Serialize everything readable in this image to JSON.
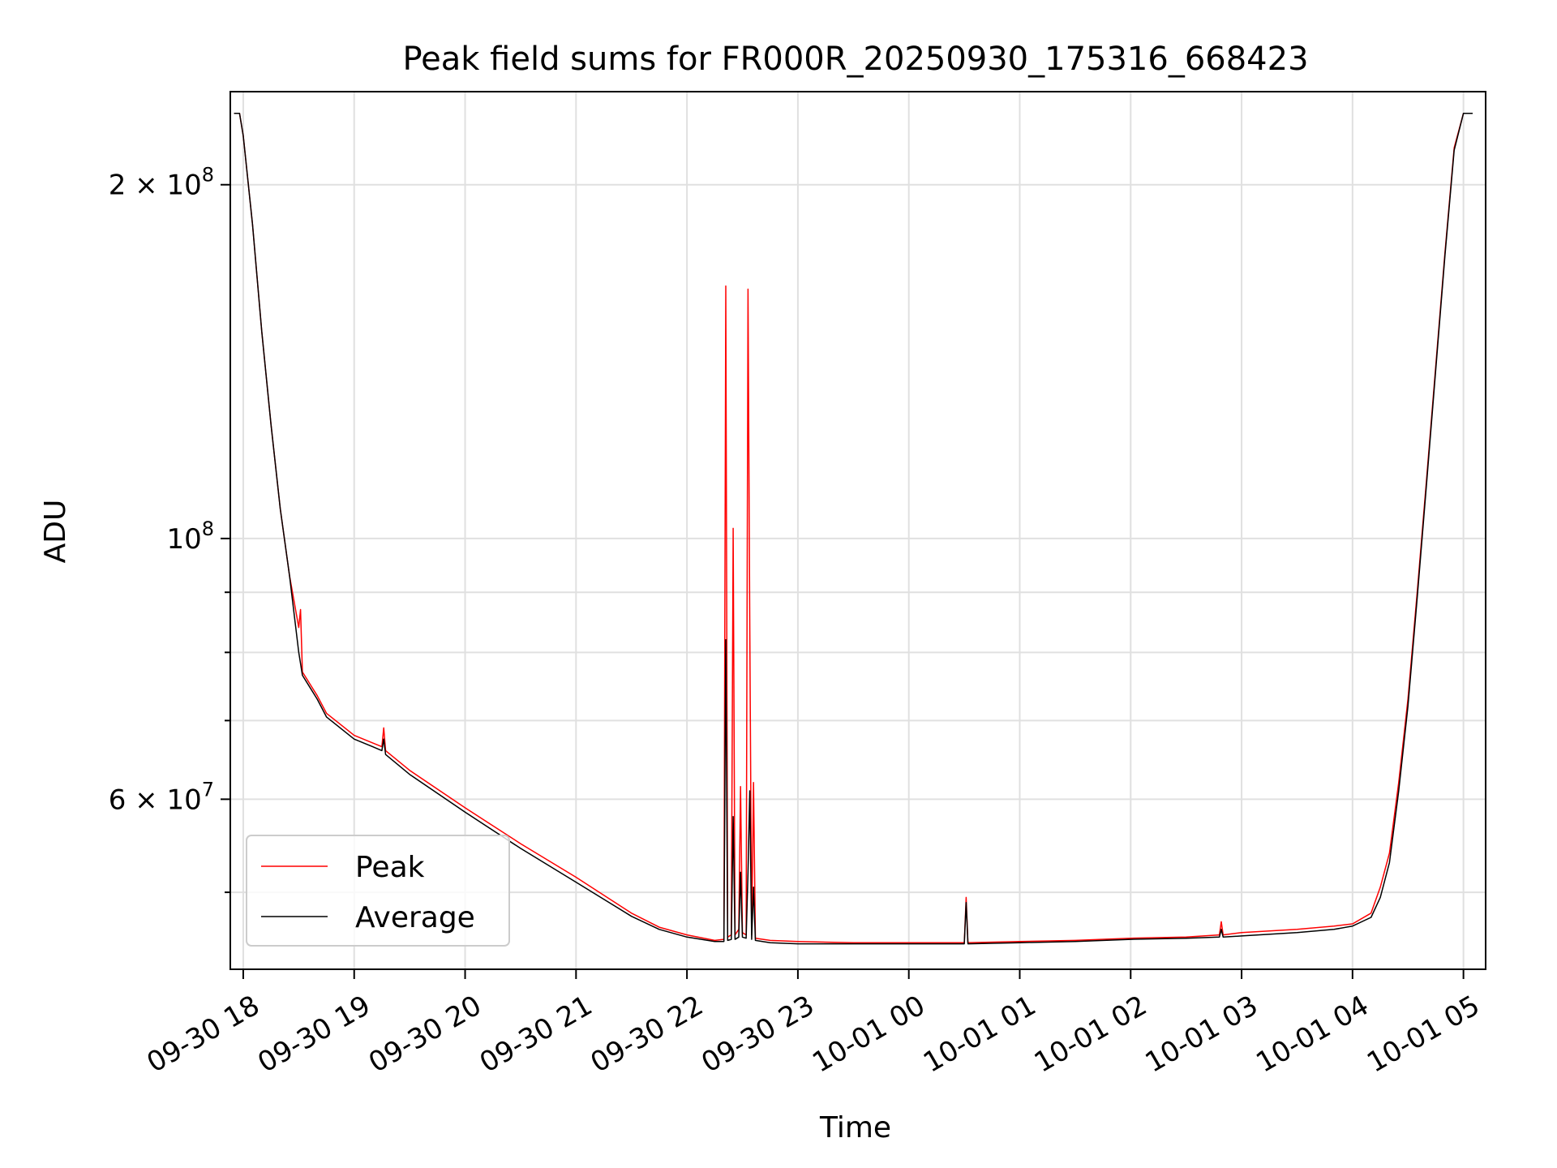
{
  "chart_data": {
    "type": "line",
    "title": "Peak field sums for FR000R_20250930_175316_668423",
    "xlabel": "Time",
    "ylabel": "ADU",
    "y_scale": "log",
    "grid": true,
    "legend_position": "lower-left",
    "xlim": [
      "2025-09-30 17:53",
      "2025-10-01 05:12"
    ],
    "ylim": [
      43000000,
      240000000
    ],
    "x_ticks": [
      {
        "label": "09-30 18",
        "time": "2025-09-30 18:00"
      },
      {
        "label": "09-30 19",
        "time": "2025-09-30 19:00"
      },
      {
        "label": "09-30 20",
        "time": "2025-09-30 20:00"
      },
      {
        "label": "09-30 21",
        "time": "2025-09-30 21:00"
      },
      {
        "label": "09-30 22",
        "time": "2025-09-30 22:00"
      },
      {
        "label": "09-30 23",
        "time": "2025-09-30 23:00"
      },
      {
        "label": "10-01 00",
        "time": "2025-10-01 00:00"
      },
      {
        "label": "10-01 01",
        "time": "2025-10-01 01:00"
      },
      {
        "label": "10-01 02",
        "time": "2025-10-01 02:00"
      },
      {
        "label": "10-01 03",
        "time": "2025-10-01 03:00"
      },
      {
        "label": "10-01 04",
        "time": "2025-10-01 04:00"
      },
      {
        "label": "10-01 05",
        "time": "2025-10-01 05:00"
      }
    ],
    "y_ticks": [
      {
        "value": 60000000,
        "mantissa": "6",
        "exponent": "7"
      },
      {
        "value": 100000000,
        "mantissa": "",
        "exponent": "8"
      },
      {
        "value": 200000000,
        "mantissa": "2",
        "exponent": "8"
      }
    ],
    "y_minor_ticks": [
      50000000,
      70000000,
      80000000,
      90000000
    ],
    "legend": [
      "Peak",
      "Average"
    ],
    "colors": {
      "peak": "#ff0000",
      "average": "#000000",
      "grid": "#e0e0e0"
    },
    "series": [
      {
        "name": "Peak",
        "color": "#ff0000",
        "points": [
          [
            "2025-09-30 17:55",
            230000000
          ],
          [
            "2025-09-30 17:58",
            230000000
          ],
          [
            "2025-09-30 18:00",
            220000000
          ],
          [
            "2025-09-30 18:05",
            185000000
          ],
          [
            "2025-09-30 18:10",
            150000000
          ],
          [
            "2025-09-30 18:15",
            125000000
          ],
          [
            "2025-09-30 18:20",
            106000000
          ],
          [
            "2025-09-30 18:25",
            93000000
          ],
          [
            "2025-09-30 18:30",
            84000000
          ],
          [
            "2025-09-30 18:31",
            87000000
          ],
          [
            "2025-09-30 18:32",
            77000000
          ],
          [
            "2025-09-30 18:40",
            73500000
          ],
          [
            "2025-09-30 18:45",
            71000000
          ],
          [
            "2025-09-30 19:00",
            68000000
          ],
          [
            "2025-09-30 19:10",
            67000000
          ],
          [
            "2025-09-30 19:15",
            66500000
          ],
          [
            "2025-09-30 19:16",
            69000000
          ],
          [
            "2025-09-30 19:17",
            66000000
          ],
          [
            "2025-09-30 19:30",
            63500000
          ],
          [
            "2025-09-30 20:00",
            59000000
          ],
          [
            "2025-09-30 20:30",
            55000000
          ],
          [
            "2025-09-30 21:00",
            51500000
          ],
          [
            "2025-09-30 21:30",
            48000000
          ],
          [
            "2025-09-30 21:45",
            46700000
          ],
          [
            "2025-09-30 22:00",
            46000000
          ],
          [
            "2025-09-30 22:15",
            45500000
          ],
          [
            "2025-09-30 22:20",
            45600000
          ],
          [
            "2025-09-30 22:21",
            164000000
          ],
          [
            "2025-09-30 22:22",
            45800000
          ],
          [
            "2025-09-30 22:24",
            46000000
          ],
          [
            "2025-09-30 22:25",
            102000000
          ],
          [
            "2025-09-30 22:26",
            46000000
          ],
          [
            "2025-09-30 22:28",
            46500000
          ],
          [
            "2025-09-30 22:29",
            61500000
          ],
          [
            "2025-09-30 22:30",
            46200000
          ],
          [
            "2025-09-30 22:32",
            46000000
          ],
          [
            "2025-09-30 22:33",
            163000000
          ],
          [
            "2025-09-30 22:34",
            84000000
          ],
          [
            "2025-09-30 22:35",
            46000000
          ],
          [
            "2025-09-30 22:36",
            62000000
          ],
          [
            "2025-09-30 22:37",
            45700000
          ],
          [
            "2025-09-30 22:45",
            45500000
          ],
          [
            "2025-09-30 23:00",
            45400000
          ],
          [
            "2025-09-30 23:30",
            45300000
          ],
          [
            "2025-10-01 00:00",
            45300000
          ],
          [
            "2025-10-01 00:30",
            45300000
          ],
          [
            "2025-10-01 00:31",
            49500000
          ],
          [
            "2025-10-01 00:32",
            45300000
          ],
          [
            "2025-10-01 01:00",
            45400000
          ],
          [
            "2025-10-01 01:30",
            45500000
          ],
          [
            "2025-10-01 02:00",
            45700000
          ],
          [
            "2025-10-01 02:30",
            45800000
          ],
          [
            "2025-10-01 02:48",
            46000000
          ],
          [
            "2025-10-01 02:49",
            47200000
          ],
          [
            "2025-10-01 02:50",
            46000000
          ],
          [
            "2025-10-01 03:00",
            46200000
          ],
          [
            "2025-10-01 03:30",
            46500000
          ],
          [
            "2025-10-01 03:50",
            46800000
          ],
          [
            "2025-10-01 04:00",
            47000000
          ],
          [
            "2025-10-01 04:10",
            48000000
          ],
          [
            "2025-10-01 04:15",
            50500000
          ],
          [
            "2025-10-01 04:20",
            54000000
          ],
          [
            "2025-10-01 04:25",
            62000000
          ],
          [
            "2025-10-01 04:30",
            73000000
          ],
          [
            "2025-10-01 04:35",
            90000000
          ],
          [
            "2025-10-01 04:40",
            112000000
          ],
          [
            "2025-10-01 04:45",
            140000000
          ],
          [
            "2025-10-01 04:50",
            175000000
          ],
          [
            "2025-10-01 04:55",
            215000000
          ],
          [
            "2025-10-01 05:00",
            230000000
          ],
          [
            "2025-10-01 05:05",
            230000000
          ]
        ]
      },
      {
        "name": "Average",
        "color": "#000000",
        "points": [
          [
            "2025-09-30 17:55",
            230000000
          ],
          [
            "2025-09-30 17:58",
            230000000
          ],
          [
            "2025-09-30 18:00",
            220000000
          ],
          [
            "2025-09-30 18:05",
            185000000
          ],
          [
            "2025-09-30 18:10",
            150000000
          ],
          [
            "2025-09-30 18:15",
            125000000
          ],
          [
            "2025-09-30 18:20",
            106000000
          ],
          [
            "2025-09-30 18:25",
            93000000
          ],
          [
            "2025-09-30 18:30",
            80000000
          ],
          [
            "2025-09-30 18:32",
            76500000
          ],
          [
            "2025-09-30 18:40",
            73000000
          ],
          [
            "2025-09-30 18:45",
            70500000
          ],
          [
            "2025-09-30 19:00",
            67500000
          ],
          [
            "2025-09-30 19:10",
            66500000
          ],
          [
            "2025-09-30 19:15",
            66000000
          ],
          [
            "2025-09-30 19:16",
            67500000
          ],
          [
            "2025-09-30 19:17",
            65500000
          ],
          [
            "2025-09-30 19:30",
            63000000
          ],
          [
            "2025-09-30 20:00",
            58500000
          ],
          [
            "2025-09-30 20:30",
            54500000
          ],
          [
            "2025-09-30 21:00",
            51000000
          ],
          [
            "2025-09-30 21:30",
            47700000
          ],
          [
            "2025-09-30 21:45",
            46500000
          ],
          [
            "2025-09-30 22:00",
            45800000
          ],
          [
            "2025-09-30 22:15",
            45400000
          ],
          [
            "2025-09-30 22:20",
            45400000
          ],
          [
            "2025-09-30 22:21",
            82000000
          ],
          [
            "2025-09-30 22:22",
            45500000
          ],
          [
            "2025-09-30 22:24",
            45600000
          ],
          [
            "2025-09-30 22:25",
            58000000
          ],
          [
            "2025-09-30 22:26",
            45600000
          ],
          [
            "2025-09-30 22:28",
            45800000
          ],
          [
            "2025-09-30 22:29",
            52000000
          ],
          [
            "2025-09-30 22:30",
            45800000
          ],
          [
            "2025-09-30 22:32",
            45700000
          ],
          [
            "2025-09-30 22:33",
            52000000
          ],
          [
            "2025-09-30 22:34",
            61000000
          ],
          [
            "2025-09-30 22:35",
            45600000
          ],
          [
            "2025-09-30 22:36",
            50500000
          ],
          [
            "2025-09-30 22:37",
            45500000
          ],
          [
            "2025-09-30 22:45",
            45300000
          ],
          [
            "2025-09-30 23:00",
            45200000
          ],
          [
            "2025-09-30 23:30",
            45200000
          ],
          [
            "2025-10-01 00:00",
            45200000
          ],
          [
            "2025-10-01 00:30",
            45200000
          ],
          [
            "2025-10-01 00:31",
            49000000
          ],
          [
            "2025-10-01 00:32",
            45200000
          ],
          [
            "2025-10-01 01:00",
            45300000
          ],
          [
            "2025-10-01 01:30",
            45400000
          ],
          [
            "2025-10-01 02:00",
            45600000
          ],
          [
            "2025-10-01 02:30",
            45700000
          ],
          [
            "2025-10-01 02:48",
            45800000
          ],
          [
            "2025-10-01 02:49",
            46500000
          ],
          [
            "2025-10-01 02:50",
            45800000
          ],
          [
            "2025-10-01 03:00",
            45900000
          ],
          [
            "2025-10-01 03:30",
            46200000
          ],
          [
            "2025-10-01 03:50",
            46500000
          ],
          [
            "2025-10-01 04:00",
            46800000
          ],
          [
            "2025-10-01 04:10",
            47600000
          ],
          [
            "2025-10-01 04:15",
            49500000
          ],
          [
            "2025-10-01 04:20",
            53000000
          ],
          [
            "2025-10-01 04:25",
            61000000
          ],
          [
            "2025-10-01 04:30",
            72000000
          ],
          [
            "2025-10-01 04:35",
            89000000
          ],
          [
            "2025-10-01 04:40",
            111000000
          ],
          [
            "2025-10-01 04:45",
            139000000
          ],
          [
            "2025-10-01 04:50",
            174000000
          ],
          [
            "2025-10-01 04:55",
            214000000
          ],
          [
            "2025-10-01 05:00",
            230000000
          ],
          [
            "2025-10-01 05:05",
            230000000
          ]
        ]
      }
    ]
  }
}
